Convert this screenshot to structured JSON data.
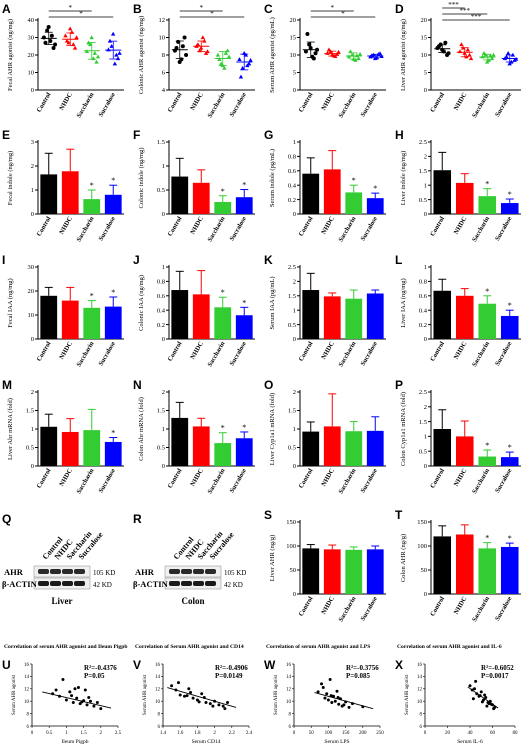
{
  "colors": {
    "control": "#000000",
    "nhdc": "#ff0000",
    "saccharin": "#33cc33",
    "sucralose": "#0000ff",
    "regression_line": "#000000"
  },
  "chart_data": [
    {
      "panel": "A",
      "type": "scatter",
      "ylabel": "Fecal AHR agonist (ng/mg)",
      "categories": [
        "Control",
        "NHDC",
        "Saccharin",
        "Sucralose"
      ],
      "ylim": [
        0,
        40
      ],
      "yticks": [
        0,
        10,
        20,
        30,
        40
      ],
      "points": [
        [
          30,
          34,
          28,
          24,
          27,
          36,
          31,
          26
        ],
        [
          31,
          27,
          33,
          24,
          28,
          35,
          26,
          30
        ],
        [
          22,
          26,
          18,
          16,
          27,
          30,
          21,
          19
        ],
        [
          23,
          25,
          15,
          18,
          28,
          32,
          20,
          21
        ]
      ],
      "mean": [
        29.5,
        29,
        22.4,
        22.8
      ],
      "sd": [
        3.5,
        3.6,
        4.8,
        5.1
      ],
      "annotations": [
        {
          "from": 0,
          "to": 2,
          "text": "*"
        },
        {
          "from": 0,
          "to": 3,
          "text": "*"
        }
      ]
    },
    {
      "panel": "B",
      "type": "scatter",
      "ylabel": "Colonic AHR agonist (ng/mg)",
      "categories": [
        "Control",
        "NHDC",
        "Saccharin",
        "Sucralose"
      ],
      "ylim": [
        4,
        12
      ],
      "yticks": [
        4,
        6,
        8,
        10,
        12
      ],
      "points": [
        [
          8.5,
          9.5,
          7.5,
          10,
          8.8,
          7.2,
          9,
          8
        ],
        [
          9,
          8.5,
          10,
          8.2,
          9.2,
          8.8,
          9.6,
          8.4
        ],
        [
          8,
          7,
          6.5,
          8.5,
          7.5,
          6.8,
          8.2,
          7.8
        ],
        [
          7.5,
          6.5,
          8,
          7,
          5.5,
          8.2,
          6.8,
          7.4
        ]
      ],
      "mean": [
        8.6,
        9,
        7.6,
        7.2
      ],
      "sd": [
        1,
        0.6,
        0.8,
        0.9
      ],
      "annotations": [
        {
          "from": 0,
          "to": 2,
          "text": "*"
        },
        {
          "from": 0,
          "to": 3,
          "text": "*"
        }
      ]
    },
    {
      "panel": "C",
      "type": "scatter",
      "ylabel": "Serum AHR agonist (pg/mL)",
      "categories": [
        "Control",
        "NHDC",
        "Saccharin",
        "Sucralose"
      ],
      "ylim": [
        0,
        20
      ],
      "yticks": [
        0,
        5,
        10,
        15,
        20
      ],
      "points": [
        [
          11,
          13,
          9.5,
          10.5,
          16,
          12,
          9,
          11.5
        ],
        [
          10.5,
          11,
          9.8,
          10.2,
          11.5,
          10,
          9.6,
          10.8
        ],
        [
          9.5,
          10,
          8.5,
          9,
          11,
          8.8,
          9.8,
          10.2
        ],
        [
          9.5,
          10,
          9.2,
          10.4,
          9.8,
          9,
          10.2,
          9.6
        ]
      ],
      "mean": [
        11.5,
        10.4,
        9.7,
        9.7
      ],
      "sd": [
        2.2,
        0.7,
        0.9,
        0.5
      ],
      "annotations": [
        {
          "from": 0,
          "to": 2,
          "text": "*"
        },
        {
          "from": 0,
          "to": 3,
          "text": "*"
        }
      ]
    },
    {
      "panel": "D",
      "type": "scatter",
      "ylabel": "Liver AHR agonist (ng/mg)",
      "categories": [
        "Control",
        "NHDC",
        "Saccharin",
        "Sucralose"
      ],
      "ylim": [
        0,
        20
      ],
      "yticks": [
        0,
        5,
        10,
        15,
        20
      ],
      "points": [
        [
          12,
          13,
          11,
          10,
          12.5,
          11.5,
          13.5,
          10.5
        ],
        [
          11,
          12,
          9.5,
          10,
          13,
          10.5,
          11.5,
          9
        ],
        [
          9.5,
          10,
          8.5,
          9,
          10.5,
          8,
          9.8,
          10
        ],
        [
          9,
          10.5,
          8,
          8.5,
          9.5,
          7.5,
          10,
          8.8
        ]
      ],
      "mean": [
        11.8,
        10.8,
        9.4,
        9
      ],
      "sd": [
        1.1,
        1.3,
        0.8,
        1
      ],
      "annotations": [
        {
          "from": 0,
          "to": 1,
          "text": "***"
        },
        {
          "from": 0,
          "to": 2,
          "text": "***"
        },
        {
          "from": 0,
          "to": 3,
          "text": "***"
        }
      ]
    },
    {
      "panel": "E",
      "type": "bar",
      "ylabel": "Fecal indole (ng/mg)",
      "categories": [
        "Control",
        "NHDC",
        "Saccharin",
        "Sucralose"
      ],
      "ylim": [
        0,
        3
      ],
      "yticks": [
        0,
        1,
        2,
        3
      ],
      "values": [
        1.65,
        1.78,
        0.62,
        0.8
      ],
      "sd": [
        0.88,
        0.92,
        0.38,
        0.4
      ],
      "stars": [
        "",
        "",
        "*",
        "*"
      ]
    },
    {
      "panel": "F",
      "type": "bar",
      "ylabel": "Colonic indole (ng/mg)",
      "categories": [
        "Control",
        "NHDC",
        "Saccharin",
        "Sucralose"
      ],
      "ylim": [
        0,
        1.5
      ],
      "yticks": [
        0,
        0.5,
        1,
        1.5
      ],
      "values": [
        0.78,
        0.65,
        0.25,
        0.35
      ],
      "sd": [
        0.38,
        0.27,
        0.13,
        0.16
      ],
      "stars": [
        "",
        "",
        "*",
        "*"
      ]
    },
    {
      "panel": "G",
      "type": "bar",
      "ylabel": "Serum indole (pg/mL)",
      "categories": [
        "Control",
        "NHDC",
        "Saccharin",
        "Sucralose"
      ],
      "ylim": [
        0,
        1
      ],
      "yticks": [
        0,
        0.2,
        0.4,
        0.6,
        0.8,
        1
      ],
      "values": [
        0.56,
        0.62,
        0.3,
        0.22
      ],
      "sd": [
        0.22,
        0.26,
        0.1,
        0.07
      ],
      "stars": [
        "",
        "",
        "*",
        "*"
      ]
    },
    {
      "panel": "H",
      "type": "bar",
      "ylabel": "Liver indole (ng/mg)",
      "categories": [
        "Control",
        "NHDC",
        "Saccharin",
        "Sucralose"
      ],
      "ylim": [
        0,
        2.5
      ],
      "yticks": [
        0,
        0.5,
        1,
        1.5,
        2,
        2.5
      ],
      "values": [
        1.52,
        1.08,
        0.62,
        0.38
      ],
      "sd": [
        0.62,
        0.32,
        0.26,
        0.14
      ],
      "stars": [
        "",
        "",
        "*",
        "*"
      ]
    },
    {
      "panel": "I",
      "type": "bar",
      "ylabel": "Fecal IAA (ng/mg)",
      "categories": [
        "Control",
        "NHDC",
        "Saccharin",
        "Sucralose"
      ],
      "ylim": [
        0,
        30
      ],
      "yticks": [
        0,
        10,
        20,
        30
      ],
      "values": [
        18,
        16,
        13,
        13.5
      ],
      "sd": [
        3.5,
        5.5,
        3,
        4
      ],
      "stars": [
        "",
        "",
        "*",
        "*"
      ]
    },
    {
      "panel": "J",
      "type": "bar",
      "ylabel": "Colonic IAA (ng/mg)",
      "categories": [
        "Control",
        "NHDC",
        "Saccharin",
        "Sucralose"
      ],
      "ylim": [
        0,
        1
      ],
      "yticks": [
        0,
        0.2,
        0.4,
        0.6,
        0.8,
        1
      ],
      "values": [
        0.68,
        0.62,
        0.44,
        0.33
      ],
      "sd": [
        0.26,
        0.33,
        0.14,
        0.11
      ],
      "stars": [
        "",
        "",
        "*",
        "*"
      ]
    },
    {
      "panel": "K",
      "type": "bar",
      "ylabel": "Serum IAA (pg/mL)",
      "categories": [
        "Control",
        "NHDC",
        "Saccharin",
        "Sucralose"
      ],
      "ylim": [
        0,
        2.5
      ],
      "yticks": [
        0,
        0.5,
        1,
        1.5,
        2,
        2.5
      ],
      "values": [
        1.7,
        1.48,
        1.4,
        1.58
      ],
      "sd": [
        0.58,
        0.12,
        0.3,
        0.12
      ],
      "stars": [
        "",
        "",
        "",
        ""
      ]
    },
    {
      "panel": "L",
      "type": "bar",
      "ylabel": "Liver IAA (ng/mg)",
      "categories": [
        "Control",
        "NHDC",
        "Saccharin",
        "Sucralose"
      ],
      "ylim": [
        0,
        1
      ],
      "yticks": [
        0,
        0.2,
        0.4,
        0.6,
        0.8,
        1
      ],
      "values": [
        0.67,
        0.6,
        0.49,
        0.32
      ],
      "sd": [
        0.16,
        0.1,
        0.11,
        0.08
      ],
      "stars": [
        "",
        "",
        "*",
        "*"
      ]
    },
    {
      "panel": "M",
      "type": "bar",
      "ylabel": "Liver Ahr mRNA (fold)",
      "categories": [
        "Control",
        "NHDC",
        "Saccharin",
        "Sucralose"
      ],
      "ylim": [
        0,
        2
      ],
      "yticks": [
        0,
        0.5,
        1,
        1.5,
        2
      ],
      "values": [
        1.06,
        0.92,
        0.97,
        0.65
      ],
      "sd": [
        0.34,
        0.36,
        0.56,
        0.12
      ],
      "stars": [
        "",
        "",
        "",
        "*"
      ]
    },
    {
      "panel": "N",
      "type": "bar",
      "ylabel": "Colon Ahr mRNA (fold)",
      "categories": [
        "Control",
        "NHDC",
        "Saccharin",
        "Sucralose"
      ],
      "ylim": [
        0,
        2
      ],
      "yticks": [
        0,
        0.5,
        1,
        1.5,
        2
      ],
      "values": [
        1.3,
        1.07,
        0.62,
        0.75
      ],
      "sd": [
        0.42,
        0.22,
        0.28,
        0.17
      ],
      "stars": [
        "",
        "",
        "*",
        "*"
      ]
    },
    {
      "panel": "O",
      "type": "bar",
      "ylabel": "Liver Cyp1a1 mRNA (fold)",
      "categories": [
        "Control",
        "NHDC",
        "Saccharin",
        "Sucralose"
      ],
      "ylim": [
        0,
        2
      ],
      "yticks": [
        0,
        0.5,
        1,
        1.5,
        2
      ],
      "values": [
        0.93,
        1.07,
        0.94,
        0.95
      ],
      "sd": [
        0.26,
        0.88,
        0.26,
        0.38
      ],
      "stars": [
        "",
        "",
        "",
        ""
      ]
    },
    {
      "panel": "P",
      "type": "bar",
      "ylabel": "Colon Cyp1a1 mRNA (fold)",
      "categories": [
        "Control",
        "NHDC",
        "Saccharin",
        "Sucralose"
      ],
      "ylim": [
        0,
        2.5
      ],
      "yticks": [
        0,
        0.5,
        1,
        1.5,
        2,
        2.5
      ],
      "values": [
        1.25,
        1.0,
        0.32,
        0.3
      ],
      "sd": [
        0.65,
        0.52,
        0.22,
        0.17
      ],
      "stars": [
        "",
        "",
        "*",
        "*"
      ]
    },
    {
      "panel": "S",
      "type": "bar",
      "ylabel": "Liver AHR (ng/g)",
      "categories": [
        "Control",
        "NHDC",
        "Saccharin",
        "Sucralose"
      ],
      "ylim": [
        0,
        150
      ],
      "yticks": [
        0,
        50,
        100,
        150
      ],
      "values": [
        95,
        93,
        92,
        93
      ],
      "sd": [
        8,
        9,
        6,
        7
      ],
      "stars": [
        "",
        "",
        "",
        ""
      ]
    },
    {
      "panel": "T",
      "type": "bar",
      "ylabel": "Colon AHR (ng/g)",
      "categories": [
        "Control",
        "NHDC",
        "Saccharin",
        "Sucralose"
      ],
      "ylim": [
        0,
        150
      ],
      "yticks": [
        0,
        50,
        100,
        150
      ],
      "values": [
        120,
        124,
        95,
        98
      ],
      "sd": [
        22,
        20,
        12,
        8
      ],
      "stars": [
        "",
        "",
        "*",
        "*"
      ]
    },
    {
      "panel": "U",
      "type": "scatter-regression",
      "title": "Correlation of serum AHR agonist and Ileum Pigpb",
      "xlabel": "Ileum Pigpb",
      "ylabel": "Serum AHR agonist",
      "xlim": [
        0.0,
        2.5
      ],
      "xticks": [
        0.0,
        0.5,
        1.0,
        1.5,
        2.0,
        2.5
      ],
      "ylim": [
        6,
        16
      ],
      "yticks": [
        6,
        8,
        10,
        12,
        14,
        16
      ],
      "r2_text": "R²=-0.4376",
      "p_text": "P=0.05",
      "x": [
        0.6,
        0.8,
        0.9,
        1.0,
        1.1,
        1.2,
        1.3,
        1.35,
        1.4,
        1.5,
        1.55,
        1.6,
        1.7,
        1.8,
        1.9,
        2.0,
        0.7,
        1.15,
        1.25,
        1.45,
        1.65
      ],
      "y": [
        11.2,
        10.8,
        13.5,
        10.2,
        11.5,
        9.8,
        10.5,
        12.2,
        9.6,
        10.1,
        11.8,
        9.4,
        10.0,
        9.2,
        9.8,
        8.8,
        11.8,
        10.9,
        12.0,
        9.9,
        10.6
      ],
      "line": [
        [
          0.3,
          11.5
        ],
        [
          2.3,
          8.9
        ]
      ]
    },
    {
      "panel": "V",
      "type": "scatter-regression",
      "title": "Correlation of Serum AHR agonist and CD14",
      "xlabel": "Serum CD14",
      "ylabel": "Serum AHR agonist",
      "xlim": [
        1.4,
        2.4
      ],
      "xticks": [
        1.4,
        1.6,
        1.8,
        2.0,
        2.2,
        2.4
      ],
      "ylim": [
        6,
        16
      ],
      "yticks": [
        6,
        8,
        10,
        12,
        14,
        16
      ],
      "r2_text": "R²=-0.4906",
      "p_text": "P=0.0149",
      "x": [
        1.5,
        1.55,
        1.6,
        1.65,
        1.7,
        1.75,
        1.8,
        1.85,
        1.9,
        1.95,
        2.0,
        2.05,
        2.1,
        2.15,
        1.58,
        1.72,
        1.88,
        1.98,
        2.12,
        1.68,
        1.82
      ],
      "y": [
        12.5,
        11.8,
        11.0,
        10.8,
        12.0,
        10.5,
        10.2,
        11.2,
        9.8,
        9.6,
        10.0,
        9.4,
        9.2,
        9.8,
        13.0,
        11.4,
        10.6,
        9.2,
        8.8,
        10.9,
        9.9
      ],
      "line": [
        [
          1.45,
          12.2
        ],
        [
          2.25,
          9.0
        ]
      ]
    },
    {
      "panel": "W",
      "type": "scatter-regression",
      "title": "Correlation of serum AHR agonist and LPS",
      "xlabel": "Serum LPS",
      "ylabel": "Serum AHR agonist",
      "xlim": [
        0,
        250
      ],
      "xticks": [
        0,
        50,
        100,
        150,
        200,
        250
      ],
      "ylim": [
        6,
        16
      ],
      "yticks": [
        6,
        8,
        10,
        12,
        14,
        16
      ],
      "r2_text": "R²=-0.3756",
      "p_text": "P=0.085",
      "x": [
        70,
        80,
        90,
        95,
        100,
        105,
        110,
        115,
        120,
        125,
        130,
        135,
        140,
        150,
        160,
        170,
        85,
        108,
        128,
        145,
        200
      ],
      "y": [
        11.5,
        12.8,
        10.5,
        11.2,
        10.2,
        13.5,
        9.8,
        10.8,
        10.0,
        11.6,
        9.5,
        10.4,
        9.2,
        9.9,
        9.0,
        9.6,
        12.2,
        10.9,
        10.6,
        9.4,
        9.1
      ],
      "line": [
        [
          60,
          11.4
        ],
        [
          230,
          8.8
        ]
      ]
    },
    {
      "panel": "X",
      "type": "scatter-regression",
      "title": "Correlation of serum AHR agonist and IL-6",
      "xlabel": "Serum IL-6",
      "ylabel": "Serum AHR agonist",
      "xlim": [
        0,
        80
      ],
      "xticks": [
        0,
        20,
        40,
        60,
        80
      ],
      "ylim": [
        6,
        16
      ],
      "yticks": [
        6,
        8,
        10,
        12,
        14,
        16
      ],
      "r2_text": "R²=-0.6052",
      "p_text": "P=0.0017",
      "x": [
        40,
        42,
        44,
        46,
        48,
        50,
        52,
        54,
        56,
        58,
        60,
        62,
        45,
        49,
        53,
        57,
        61,
        43,
        51,
        55,
        59
      ],
      "y": [
        12.5,
        11.8,
        12.0,
        11.2,
        10.8,
        11.5,
        10.2,
        10.6,
        9.8,
        10.0,
        9.4,
        9.0,
        13.2,
        10.9,
        11.0,
        9.6,
        8.8,
        10.4,
        9.9,
        9.2,
        9.5
      ],
      "line": [
        [
          38,
          12.3
        ],
        [
          65,
          8.9
        ]
      ]
    }
  ],
  "blots": [
    {
      "panel": "Q",
      "lanes": [
        "Control",
        "NHDC",
        "Saccharin",
        "Sucralose"
      ],
      "rows": [
        "AHR",
        "β-ACTIN"
      ],
      "sizes": [
        "105 KD",
        "42 KD"
      ],
      "tissue": "Liver"
    },
    {
      "panel": "R",
      "lanes": [
        "Control",
        "NHDC",
        "Saccharin",
        "Sucralose"
      ],
      "rows": [
        "AHR",
        "β-ACTIN"
      ],
      "sizes": [
        "105 KD",
        "42 KD"
      ],
      "tissue": "Colon"
    }
  ]
}
